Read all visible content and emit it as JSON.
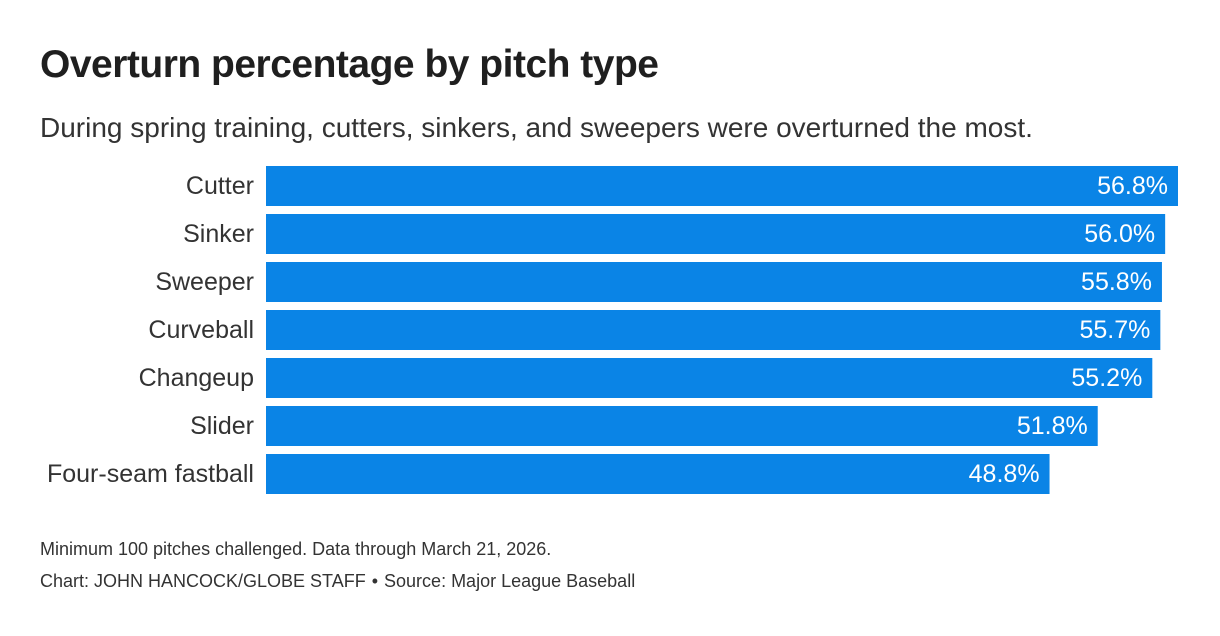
{
  "header": {
    "title": "Overturn percentage by pitch type",
    "subtitle": "During spring training, cutters, sinkers, and sweepers were overturned the most."
  },
  "chart_data": {
    "type": "bar",
    "orientation": "horizontal",
    "title": "Overturn percentage by pitch type",
    "subtitle": "During spring training, cutters, sinkers, and sweepers were overturned the most.",
    "xlabel": "",
    "ylabel": "",
    "categories": [
      "Cutter",
      "Sinker",
      "Sweeper",
      "Curveball",
      "Changeup",
      "Slider",
      "Four-seam fastball"
    ],
    "values": [
      56.8,
      56.0,
      55.8,
      55.7,
      55.2,
      51.8,
      48.8
    ],
    "value_labels": [
      "56.8%",
      "56.0%",
      "55.8%",
      "55.7%",
      "55.2%",
      "51.8%",
      "48.8%"
    ],
    "xlim": [
      0,
      56.8
    ],
    "grid": false,
    "bar_color": "#0a84e6",
    "label_color": "#ffffff"
  },
  "footer": {
    "note": "Minimum 100 pitches challenged. Data through March 21, 2026.",
    "credit": "Chart: JOHN HANCOCK/GLOBE STAFF",
    "separator": "•",
    "source": "Source: Major League Baseball"
  }
}
